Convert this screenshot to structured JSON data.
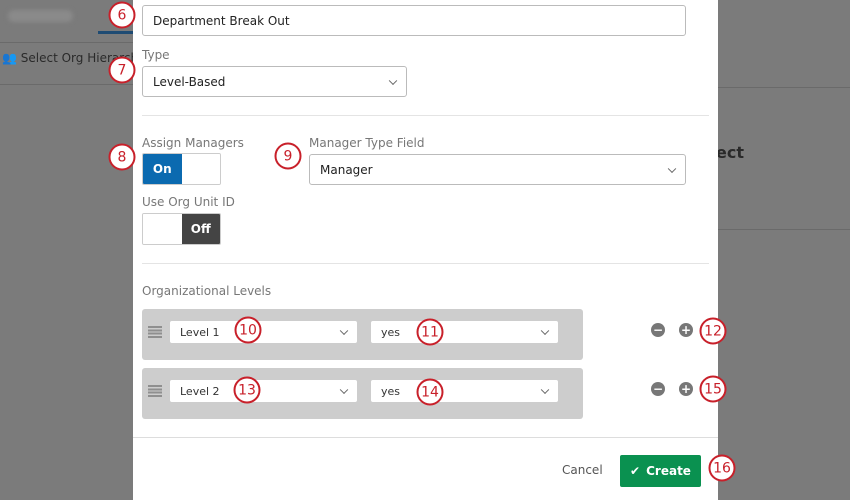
{
  "background": {
    "select_org_hierarchy": "Select Org Hierarchy",
    "partial_heading": "ect"
  },
  "modal": {
    "name_value": "Department Break Out",
    "type_label": "Type",
    "type_value": "Level-Based",
    "assign_managers_label": "Assign Managers",
    "assign_managers_on": "On",
    "manager_type_label": "Manager Type Field",
    "manager_type_value": "Manager",
    "use_org_unit_label": "Use Org Unit ID",
    "use_org_unit_off": "Off",
    "org_levels_label": "Organizational Levels",
    "levels": [
      {
        "level": "Level 1",
        "value": "yes"
      },
      {
        "level": "Level 2",
        "value": "yes"
      }
    ],
    "cancel_label": "Cancel",
    "create_label": "Create"
  },
  "callouts": [
    "6",
    "7",
    "8",
    "9",
    "10",
    "11",
    "12",
    "13",
    "14",
    "15",
    "16"
  ],
  "colors": {
    "toggle_on": "#0b6ab0",
    "toggle_off": "#444444",
    "create": "#0a9150",
    "callout": "#c8202a"
  }
}
